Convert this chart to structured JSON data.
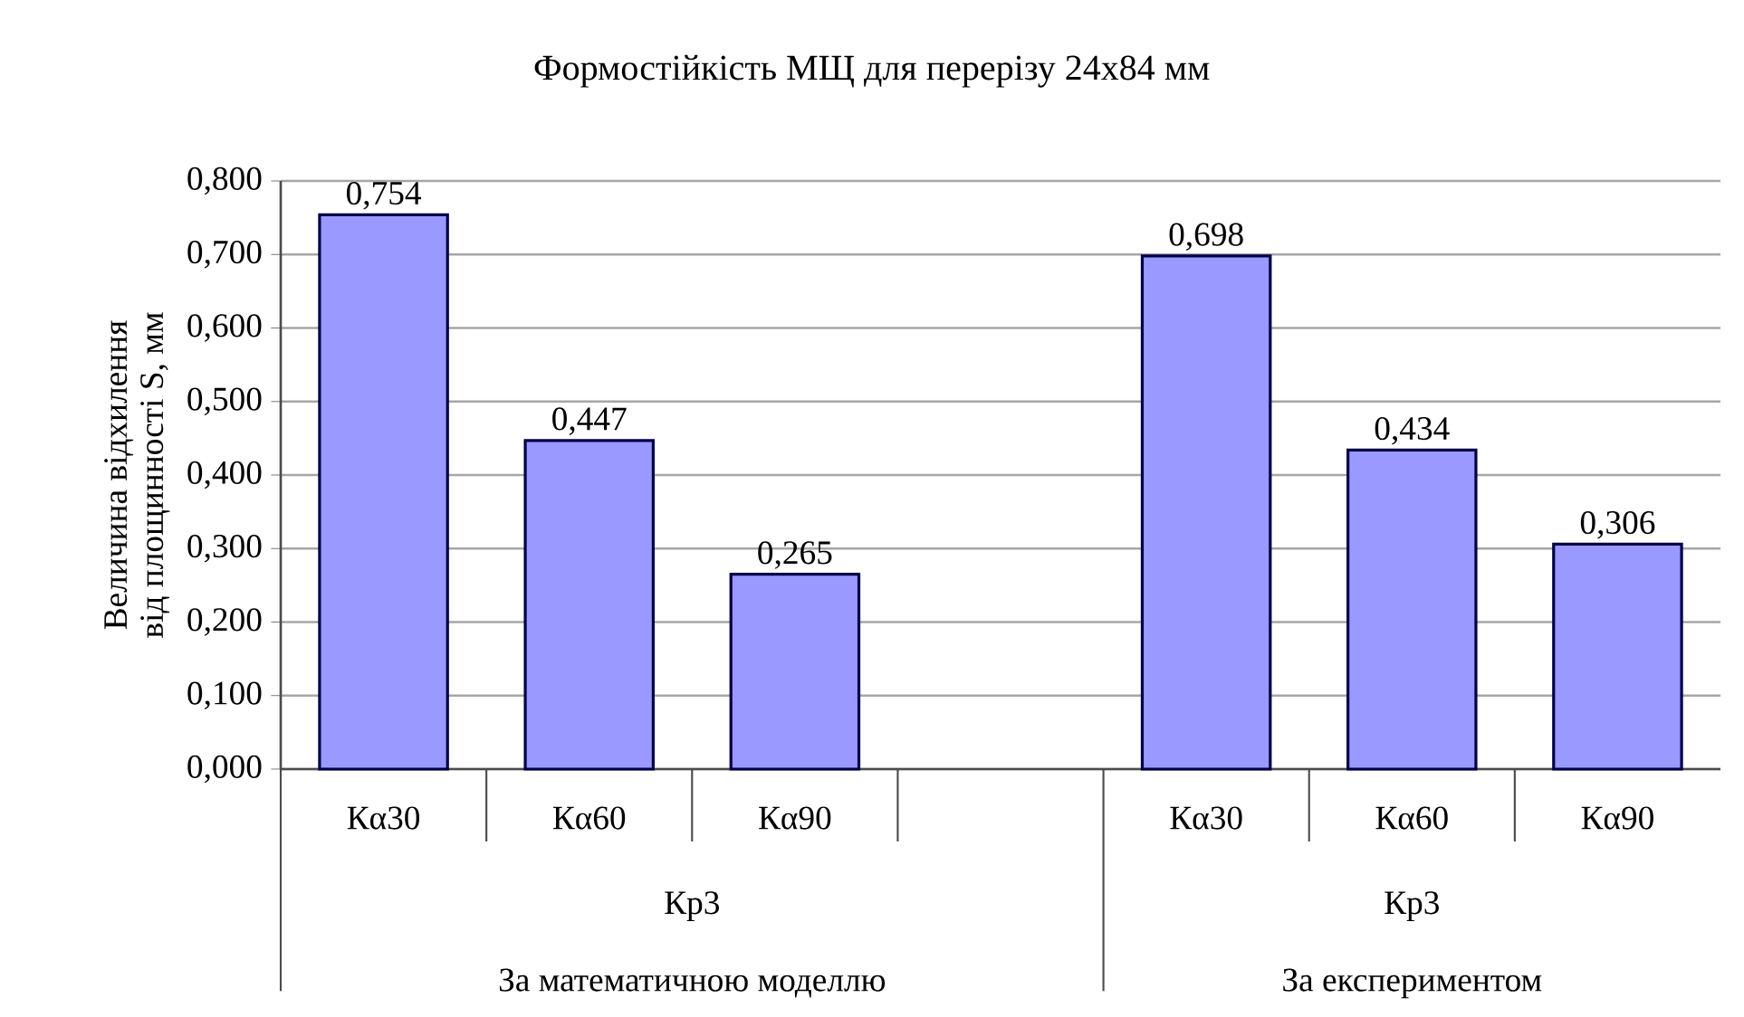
{
  "chart_data": {
    "type": "bar",
    "title": "Формостійкість МЩ для перерізу 24х84 мм",
    "ylabel": "Величина відхилення\nвід площинності S, мм",
    "categories": [
      "Кα30",
      "Кα60",
      "Кα90",
      null,
      "Кα30",
      "Кα60",
      "Кα90"
    ],
    "values": [
      0.754,
      0.447,
      0.265,
      null,
      0.698,
      0.434,
      0.306
    ],
    "value_labels": [
      "0,754",
      "0,447",
      "0,265",
      null,
      "0,698",
      "0,434",
      "0,306"
    ],
    "color": "#9999ff",
    "ylim": [
      0,
      0.8
    ],
    "yticks": [
      {
        "value": 0,
        "label": "0,000"
      },
      {
        "value": 0.1,
        "label": "0,100"
      },
      {
        "value": 0.2,
        "label": "0,200"
      },
      {
        "value": 0.3,
        "label": "0,300"
      },
      {
        "value": 0.4,
        "label": "0,400"
      },
      {
        "value": 0.5,
        "label": "0,500"
      },
      {
        "value": 0.6,
        "label": "0,600"
      },
      {
        "value": 0.7,
        "label": "0,700"
      },
      {
        "value": 0.8,
        "label": "0,800"
      }
    ],
    "grid": "y",
    "annotations": [
      "Кр3",
      "Кр3",
      "За математичною моделлю",
      "За експериментом"
    ]
  }
}
